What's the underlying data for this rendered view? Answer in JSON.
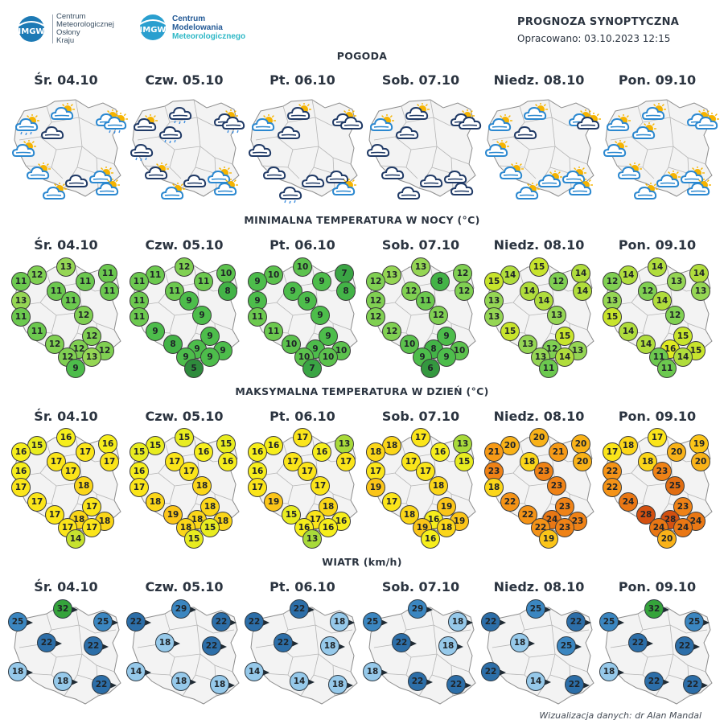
{
  "header": {
    "logo1_badge": "IMGW",
    "logo1_lines": [
      "Centrum",
      "Meteorologicznej",
      "Osłony",
      "Kraju"
    ],
    "logo2_badge": "IMGW",
    "logo2_lines": [
      "Centrum",
      "Modelowania",
      "Meteorologicznego"
    ],
    "title": "PROGNOZA SYNOPTYCZNA",
    "subtitle": "Opracowano: 03.10.2023 12:15"
  },
  "colors": {
    "region_fill": "#f3f3f3",
    "border": "#8d8d8d",
    "cloud_dark": "#203a66",
    "cloud_light": "#2b88d0",
    "sun": "#f6b400",
    "rain": "#3e8fe0",
    "wind_dark": "#2c6ea8",
    "wind_mid": "#3b86c0",
    "wind_light": "#96c9ea",
    "wind_green": "#35a33b"
  },
  "days": [
    "Śr. 04.10",
    "Czw. 05.10",
    "Pt. 06.10",
    "Sob. 07.10",
    "Niedz. 08.10",
    "Pon. 09.10"
  ],
  "sections": {
    "weather": {
      "title": "POGODA",
      "icons": [
        [
          "cloud-rain-sun",
          "cloud-sun",
          "sun-cloud",
          "cloud-rain-sun",
          "cloud-sun",
          "cloud-dark",
          "cloud-sun",
          "cloud-dark",
          "cloud-sun",
          "cloud-sun",
          "cloud-sun"
        ],
        [
          "cloud-dark-sun",
          "cloud-dark-rain",
          "cloud-dark-sun",
          "cloud-dark-rain",
          "cloud-dark-rain",
          "cloud-dark-rain",
          "cloud-dark-sun",
          "cloud-dark",
          "cloud-sun",
          "cloud-sun",
          "cloud-sun"
        ],
        [
          "cloud-sun",
          "cloud-dark-sun",
          "cloud-dark-sun",
          "cloud-dark",
          "cloud-dark",
          "cloud-dark",
          "cloud-dark",
          "cloud-dark",
          "cloud-dark",
          "cloud-dark-rain",
          "cloud-sun"
        ],
        [
          "cloud-sun",
          "cloud-dark-sun",
          "cloud-dark-sun",
          "cloud-dark",
          "cloud-dark",
          "cloud-dark",
          "cloud-dark",
          "cloud-dark",
          "cloud-dark",
          "cloud-dark",
          "cloud-dark"
        ],
        [
          "cloud-sun",
          "cloud-sun",
          "cloud-sun",
          "cloud-dark-sun",
          "cloud-sun",
          "cloud-dark",
          "cloud-sun",
          "cloud-sun",
          "cloud-sun",
          "cloud-sun",
          "cloud-sun"
        ],
        [
          "cloud-sun",
          "cloud-sun",
          "cloud-sun",
          "cloud-sun",
          "cloud-sun",
          "sun-cloud",
          "cloud-sun",
          "cloud-sun",
          "cloud-sun",
          "sun-cloud",
          "cloud-sun"
        ]
      ]
    },
    "tmin": {
      "title": "MINIMALNA TEMPERATURA W NOCY (°C)",
      "values": [
        [
          13,
          12,
          11,
          11,
          11,
          11,
          11,
          13,
          11,
          11,
          12,
          11,
          12,
          12,
          12,
          12,
          12,
          13,
          9
        ],
        [
          12,
          11,
          10,
          11,
          11,
          11,
          8,
          11,
          9,
          11,
          9,
          9,
          9,
          8,
          9,
          9,
          9,
          9,
          5
        ],
        [
          10,
          10,
          7,
          9,
          9,
          9,
          8,
          9,
          9,
          11,
          9,
          11,
          9,
          10,
          9,
          10,
          10,
          10,
          7
        ],
        [
          13,
          13,
          12,
          12,
          8,
          12,
          12,
          12,
          11,
          12,
          12,
          12,
          9,
          10,
          8,
          10,
          9,
          9,
          6
        ],
        [
          15,
          14,
          14,
          15,
          12,
          14,
          14,
          13,
          14,
          13,
          13,
          15,
          15,
          13,
          12,
          13,
          13,
          14,
          11
        ],
        [
          14,
          14,
          14,
          12,
          13,
          12,
          13,
          13,
          14,
          15,
          12,
          14,
          15,
          14,
          16,
          15,
          11,
          14,
          11
        ]
      ],
      "scale": {
        "5": "#2e8b3c",
        "6": "#34983f",
        "7": "#3aa544",
        "8": "#43b347",
        "9": "#4dbd4b",
        "10": "#5cc24d",
        "11": "#6cc94f",
        "12": "#80d052",
        "13": "#95d654",
        "14": "#b0dd3c",
        "15": "#c8e42c",
        "16": "#dfea22"
      }
    },
    "tmax": {
      "title": "MAKSYMALNA TEMPERATURA W DZIEŃ (°C)",
      "values": [
        [
          16,
          15,
          16,
          16,
          17,
          17,
          17,
          16,
          17,
          17,
          18,
          17,
          17,
          17,
          18,
          18,
          17,
          17,
          14
        ],
        [
          15,
          15,
          15,
          15,
          16,
          17,
          16,
          16,
          17,
          17,
          18,
          18,
          18,
          19,
          18,
          18,
          18,
          15,
          15
        ],
        [
          17,
          16,
          13,
          16,
          16,
          17,
          17,
          16,
          17,
          17,
          17,
          19,
          18,
          15,
          17,
          16,
          16,
          16,
          13
        ],
        [
          17,
          18,
          13,
          18,
          16,
          17,
          15,
          17,
          17,
          19,
          18,
          17,
          19,
          18,
          16,
          19,
          19,
          18,
          16
        ],
        [
          20,
          20,
          20,
          21,
          21,
          18,
          20,
          23,
          23,
          18,
          23,
          22,
          23,
          22,
          24,
          23,
          22,
          23,
          19
        ],
        [
          17,
          18,
          19,
          17,
          20,
          18,
          20,
          22,
          23,
          22,
          25,
          24,
          23,
          28,
          28,
          24,
          24,
          24,
          20
        ]
      ],
      "scale": {
        "13": "#a8da3a",
        "14": "#c6e22e",
        "15": "#e8ec20",
        "16": "#f6ee1c",
        "17": "#fbe51a",
        "18": "#fbd619",
        "19": "#fbc519",
        "20": "#f9b218",
        "21": "#f69a17",
        "22": "#f49317",
        "23": "#ef8216",
        "24": "#e97714",
        "25": "#e06d12",
        "28": "#d35010"
      }
    },
    "wind": {
      "title": "WIATR (km/h)",
      "values": [
        [
          32,
          25,
          25,
          22,
          22,
          18,
          18,
          22
        ],
        [
          29,
          22,
          22,
          18,
          22,
          14,
          18,
          18
        ],
        [
          22,
          22,
          18,
          22,
          18,
          14,
          14,
          18
        ],
        [
          29,
          25,
          18,
          22,
          18,
          18,
          22,
          22
        ],
        [
          25,
          22,
          22,
          18,
          25,
          22,
          14,
          22
        ],
        [
          32,
          25,
          25,
          22,
          22,
          18,
          22,
          22
        ]
      ],
      "shade": [
        [
          "green",
          "mid",
          "mid",
          "dark",
          "dark",
          "light",
          "light",
          "dark"
        ],
        [
          "mid",
          "dark",
          "dark",
          "light",
          "dark",
          "light",
          "light",
          "light"
        ],
        [
          "dark",
          "dark",
          "light",
          "dark",
          "light",
          "light",
          "light",
          "light"
        ],
        [
          "mid",
          "mid",
          "light",
          "dark",
          "light",
          "light",
          "dark",
          "dark"
        ],
        [
          "mid",
          "dark",
          "dark",
          "light",
          "mid",
          "dark",
          "light",
          "dark"
        ],
        [
          "green",
          "mid",
          "mid",
          "dark",
          "dark",
          "light",
          "dark",
          "dark"
        ]
      ]
    }
  },
  "credit": "Wizualizacja danych: dr Alan Mandal"
}
